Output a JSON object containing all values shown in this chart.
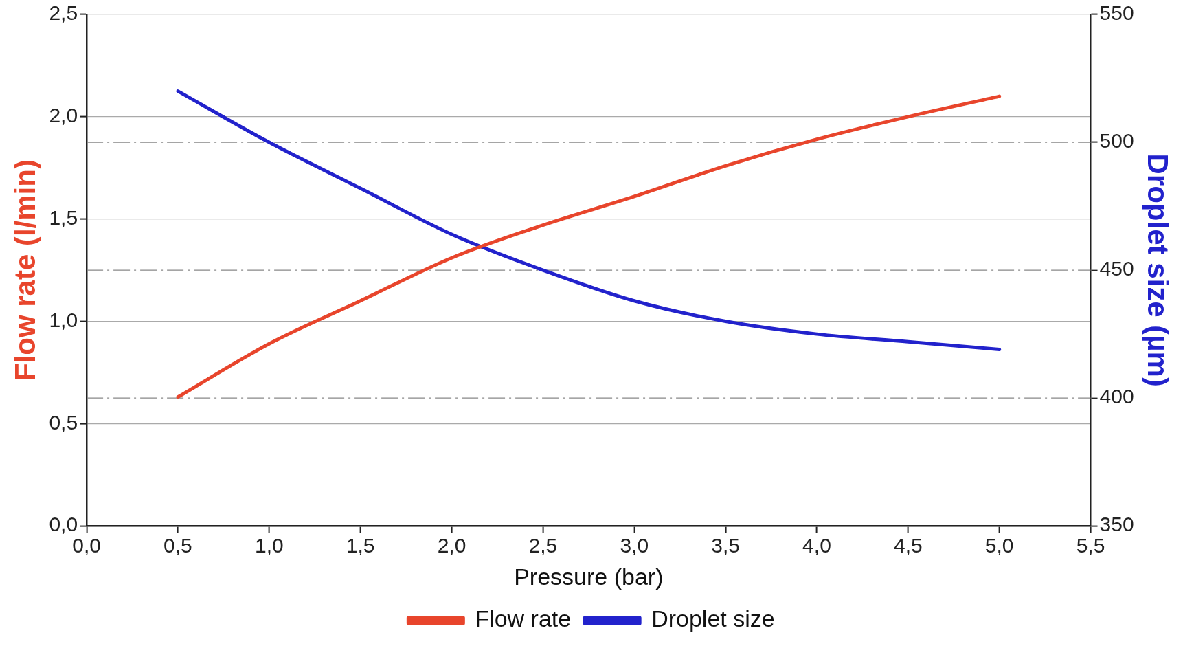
{
  "chart_data": {
    "type": "line",
    "xlabel": "Pressure (bar)",
    "ylabel": "Flow rate (l/min)",
    "y2label": "Droplet size (µm)",
    "x": [
      0.5,
      1.0,
      1.5,
      2.0,
      2.5,
      3.0,
      3.5,
      4.0,
      4.5,
      5.0
    ],
    "series": [
      {
        "name": "Flow rate",
        "color": "#e8452c",
        "values": [
          0.63,
          0.89,
          1.1,
          1.31,
          1.47,
          1.61,
          1.76,
          1.89,
          2.0,
          2.1
        ]
      },
      {
        "name": "Droplet size",
        "color": "#2222cc",
        "axis": "y2",
        "values": [
          520,
          500,
          482,
          464,
          450,
          438,
          430,
          425,
          422,
          419
        ]
      }
    ],
    "xlim": [
      0,
      5.5
    ],
    "xticks": [
      {
        "value": 0,
        "label": "0,0"
      },
      {
        "value": 0.5,
        "label": "0,5"
      },
      {
        "value": 1,
        "label": "1,0"
      },
      {
        "value": 1.5,
        "label": "1,5"
      },
      {
        "value": 2,
        "label": "2,0"
      },
      {
        "value": 2.5,
        "label": "2,5"
      },
      {
        "value": 3,
        "label": "3,0"
      },
      {
        "value": 3.5,
        "label": "3,5"
      },
      {
        "value": 4,
        "label": "4,0"
      },
      {
        "value": 4.5,
        "label": "4,5"
      },
      {
        "value": 5,
        "label": "5,0"
      },
      {
        "value": 5.5,
        "label": "5,5"
      }
    ],
    "ylim": [
      0,
      2.5
    ],
    "yticks": [
      {
        "value": 0,
        "label": "0,0"
      },
      {
        "value": 0.5,
        "label": "0,5"
      },
      {
        "value": 1,
        "label": "1,0"
      },
      {
        "value": 1.5,
        "label": "1,5"
      },
      {
        "value": 2,
        "label": "2,0"
      },
      {
        "value": 2.5,
        "label": "2,5"
      }
    ],
    "y2lim": [
      350,
      550
    ],
    "y2ticks": [
      350,
      400,
      450,
      500,
      550
    ],
    "grid": "y",
    "legend": "bottom",
    "marker": "none",
    "line_style": "solid"
  }
}
